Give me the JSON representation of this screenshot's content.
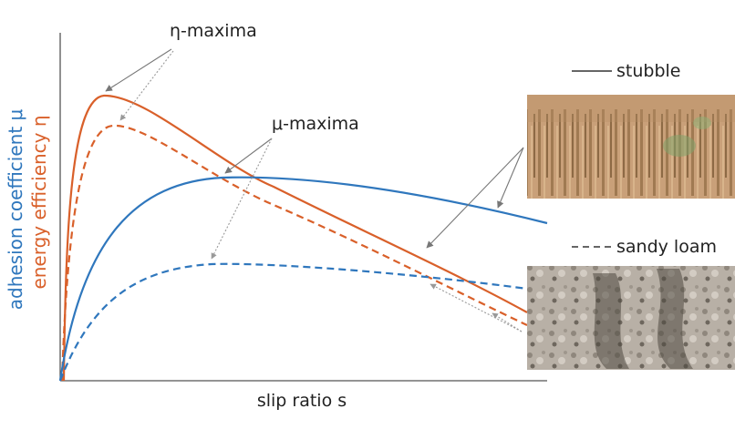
{
  "diagram": {
    "x_axis_label": "slip ratio s",
    "y_axis_label_mu": "adhesion coefficient μ",
    "y_axis_label_eta": "energy efficiency η",
    "annotation_eta": "η-maxima",
    "annotation_mu": "μ-maxima",
    "legend": [
      {
        "label": "stubble",
        "line_style": "solid"
      },
      {
        "label": "sandy loam",
        "line_style": "dashed"
      }
    ],
    "curves": [
      {
        "quantity": "energy efficiency η",
        "surface": "stubble",
        "style": "solid"
      },
      {
        "quantity": "energy efficiency η",
        "surface": "sandy loam",
        "style": "dashed"
      },
      {
        "quantity": "adhesion coefficient μ",
        "surface": "stubble",
        "style": "solid"
      },
      {
        "quantity": "adhesion coefficient μ",
        "surface": "sandy loam",
        "style": "dashed"
      }
    ],
    "images": [
      {
        "subject": "stubble field photo"
      },
      {
        "subject": "sandy loam soil photo"
      }
    ],
    "colors": {
      "mu": "#2f77bd",
      "eta": "#d9602a",
      "axis": "#555555",
      "arrow_solid": "#777777",
      "arrow_dotted": "#999999"
    }
  }
}
